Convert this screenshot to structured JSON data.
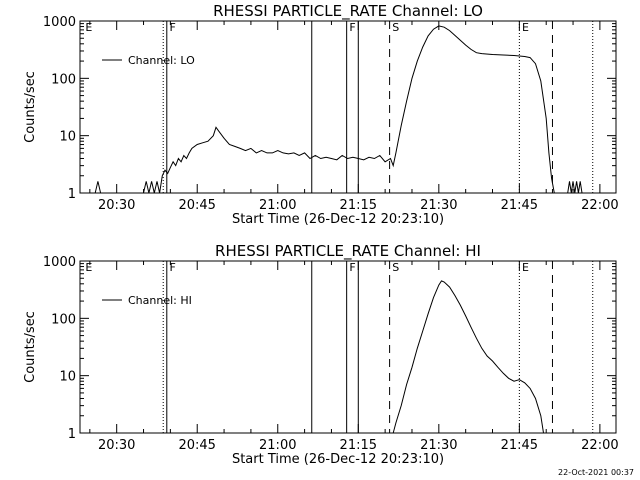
{
  "footer": "22-Oct-2021 00:37",
  "chart_data": [
    {
      "type": "line",
      "title": "RHESSI PARTICLE_RATE Channel: LO",
      "xlabel": "Start Time (26-Dec-12 20:23:10)",
      "ylabel": "Counts/sec",
      "y_scale": "log",
      "ylim": [
        1,
        1000
      ],
      "yticks": [
        {
          "value": 1,
          "label": "1"
        },
        {
          "value": 10,
          "label": "10"
        },
        {
          "value": 100,
          "label": "100"
        },
        {
          "value": 1000,
          "label": "1000"
        }
      ],
      "xlim": [
        "20:23:10",
        "22:03:00"
      ],
      "xticks": [
        "20:30",
        "20:45",
        "21:00",
        "21:15",
        "21:30",
        "21:45",
        "22:00"
      ],
      "legend": {
        "position": "top-left",
        "entries": [
          "Channel: LO"
        ]
      },
      "series": [
        {
          "name": "Channel: LO",
          "points": [
            [
              "20:26:00",
              1
            ],
            [
              "20:26:30",
              1.6
            ],
            [
              "20:27:00",
              1
            ],
            [
              "20:35:00",
              1
            ],
            [
              "20:35:30",
              1.6
            ],
            [
              "20:36:00",
              1
            ],
            [
              "20:36:30",
              1.6
            ],
            [
              "20:37:00",
              1
            ],
            [
              "20:37:30",
              1.6
            ],
            [
              "20:38:00",
              1
            ],
            [
              "20:38:30",
              2
            ],
            [
              "20:39:00",
              2.5
            ],
            [
              "20:39:30",
              2.2
            ],
            [
              "20:40:00",
              2.8
            ],
            [
              "20:40:30",
              3.5
            ],
            [
              "20:41:00",
              3
            ],
            [
              "20:41:30",
              4
            ],
            [
              "20:42:00",
              3.5
            ],
            [
              "20:42:30",
              4.5
            ],
            [
              "20:43:00",
              4
            ],
            [
              "20:43:30",
              5
            ],
            [
              "20:44:00",
              6
            ],
            [
              "20:45:00",
              7
            ],
            [
              "20:46:00",
              7.5
            ],
            [
              "20:47:00",
              8
            ],
            [
              "20:48:00",
              10
            ],
            [
              "20:48:30",
              14
            ],
            [
              "20:49:00",
              12
            ],
            [
              "20:50:00",
              9
            ],
            [
              "20:51:00",
              7
            ],
            [
              "20:52:00",
              6.5
            ],
            [
              "20:53:00",
              6
            ],
            [
              "20:54:00",
              5.5
            ],
            [
              "20:55:00",
              6
            ],
            [
              "20:56:00",
              5
            ],
            [
              "20:57:00",
              5.5
            ],
            [
              "20:58:00",
              5
            ],
            [
              "20:59:00",
              5
            ],
            [
              "21:00:00",
              5.5
            ],
            [
              "21:01:00",
              5
            ],
            [
              "21:02:00",
              4.8
            ],
            [
              "21:03:00",
              5
            ],
            [
              "21:04:00",
              4.5
            ],
            [
              "21:05:00",
              5
            ],
            [
              "21:06:00",
              4
            ],
            [
              "21:07:00",
              4.5
            ],
            [
              "21:08:00",
              4
            ],
            [
              "21:09:00",
              4.2
            ],
            [
              "21:10:00",
              4
            ],
            [
              "21:11:00",
              3.8
            ],
            [
              "21:12:00",
              4.5
            ],
            [
              "21:13:00",
              4
            ],
            [
              "21:14:00",
              4.2
            ],
            [
              "21:15:00",
              4
            ],
            [
              "21:16:00",
              3.8
            ],
            [
              "21:17:00",
              4.2
            ],
            [
              "21:18:00",
              4
            ],
            [
              "21:19:00",
              4.5
            ],
            [
              "21:20:00",
              3.5
            ],
            [
              "21:21:00",
              4
            ],
            [
              "21:21:30",
              3
            ],
            [
              "21:22:00",
              5
            ],
            [
              "21:23:00",
              15
            ],
            [
              "21:24:00",
              40
            ],
            [
              "21:25:00",
              100
            ],
            [
              "21:26:00",
              200
            ],
            [
              "21:27:00",
              350
            ],
            [
              "21:28:00",
              550
            ],
            [
              "21:29:00",
              720
            ],
            [
              "21:30:00",
              820
            ],
            [
              "21:31:00",
              780
            ],
            [
              "21:32:00",
              680
            ],
            [
              "21:33:00",
              560
            ],
            [
              "21:34:00",
              460
            ],
            [
              "21:35:00",
              380
            ],
            [
              "21:36:00",
              320
            ],
            [
              "21:37:00",
              280
            ],
            [
              "21:38:00",
              270
            ],
            [
              "21:40:00",
              260
            ],
            [
              "21:42:00",
              255
            ],
            [
              "21:44:00",
              250
            ],
            [
              "21:46:00",
              240
            ],
            [
              "21:47:00",
              230
            ],
            [
              "21:48:00",
              180
            ],
            [
              "21:49:00",
              90
            ],
            [
              "21:50:00",
              20
            ],
            [
              "21:50:30",
              5
            ],
            [
              "21:51:00",
              1.8
            ],
            [
              "21:51:30",
              1
            ],
            [
              "21:54:00",
              1
            ],
            [
              "21:54:20",
              1.6
            ],
            [
              "21:54:40",
              1
            ],
            [
              "21:55:00",
              1.6
            ],
            [
              "21:55:20",
              1
            ],
            [
              "21:55:40",
              1.6
            ],
            [
              "21:56:00",
              1
            ],
            [
              "21:56:20",
              1.6
            ],
            [
              "21:56:40",
              1
            ]
          ]
        }
      ],
      "vlines": [
        {
          "time": "20:38:40",
          "style": "dotted"
        },
        {
          "time": "20:39:20",
          "style": "solid"
        },
        {
          "time": "21:06:20",
          "style": "solid"
        },
        {
          "time": "21:12:50",
          "style": "solid"
        },
        {
          "time": "21:15:00",
          "style": "solid"
        },
        {
          "time": "21:20:50",
          "style": "dashed"
        },
        {
          "time": "21:45:00",
          "style": "dotted"
        },
        {
          "time": "21:51:10",
          "style": "dashed"
        },
        {
          "time": "21:58:40",
          "style": "dotted"
        }
      ],
      "flags": [
        {
          "time": "20:24:10",
          "label": "E"
        },
        {
          "time": "20:39:50",
          "label": "F"
        },
        {
          "time": "21:13:20",
          "label": "F"
        },
        {
          "time": "21:21:20",
          "label": "S"
        },
        {
          "time": "21:45:30",
          "label": "E"
        }
      ]
    },
    {
      "type": "line",
      "title": "RHESSI PARTICLE_RATE Channel: HI",
      "xlabel": "Start Time (26-Dec-12 20:23:10)",
      "ylabel": "Counts/sec",
      "y_scale": "log",
      "ylim": [
        1,
        1000
      ],
      "yticks": [
        {
          "value": 1,
          "label": "1"
        },
        {
          "value": 10,
          "label": "10"
        },
        {
          "value": 100,
          "label": "100"
        },
        {
          "value": 1000,
          "label": "1000"
        }
      ],
      "xlim": [
        "20:23:10",
        "22:03:00"
      ],
      "xticks": [
        "20:30",
        "20:45",
        "21:00",
        "21:15",
        "21:30",
        "21:45",
        "22:00"
      ],
      "legend": {
        "position": "top-left",
        "entries": [
          "Channel: HI"
        ]
      },
      "series": [
        {
          "name": "Channel: HI",
          "points": [
            [
              "21:21:30",
              1
            ],
            [
              "21:22:00",
              1.5
            ],
            [
              "21:23:00",
              3
            ],
            [
              "21:24:00",
              7
            ],
            [
              "21:25:00",
              14
            ],
            [
              "21:26:00",
              30
            ],
            [
              "21:27:00",
              60
            ],
            [
              "21:28:00",
              120
            ],
            [
              "21:29:00",
              230
            ],
            [
              "21:30:00",
              380
            ],
            [
              "21:30:30",
              450
            ],
            [
              "21:31:00",
              430
            ],
            [
              "21:32:00",
              350
            ],
            [
              "21:33:00",
              250
            ],
            [
              "21:34:00",
              170
            ],
            [
              "21:35:00",
              110
            ],
            [
              "21:36:00",
              70
            ],
            [
              "21:37:00",
              45
            ],
            [
              "21:38:00",
              30
            ],
            [
              "21:39:00",
              22
            ],
            [
              "21:40:00",
              18
            ],
            [
              "21:41:00",
              14
            ],
            [
              "21:42:00",
              11
            ],
            [
              "21:43:00",
              9
            ],
            [
              "21:44:00",
              8
            ],
            [
              "21:45:00",
              8.5
            ],
            [
              "21:46:00",
              7.5
            ],
            [
              "21:47:00",
              6
            ],
            [
              "21:48:00",
              4
            ],
            [
              "21:49:00",
              2
            ],
            [
              "21:49:30",
              1
            ]
          ]
        }
      ],
      "vlines": [
        {
          "time": "20:38:40",
          "style": "dotted"
        },
        {
          "time": "20:39:20",
          "style": "solid"
        },
        {
          "time": "21:06:20",
          "style": "solid"
        },
        {
          "time": "21:12:50",
          "style": "solid"
        },
        {
          "time": "21:15:00",
          "style": "solid"
        },
        {
          "time": "21:20:50",
          "style": "dashed"
        },
        {
          "time": "21:45:00",
          "style": "dotted"
        },
        {
          "time": "21:51:10",
          "style": "dashed"
        },
        {
          "time": "21:58:40",
          "style": "dotted"
        }
      ],
      "flags": [
        {
          "time": "20:24:10",
          "label": "E"
        },
        {
          "time": "20:39:50",
          "label": "F"
        },
        {
          "time": "21:13:20",
          "label": "F"
        },
        {
          "time": "21:21:20",
          "label": "S"
        },
        {
          "time": "21:45:30",
          "label": "E"
        }
      ]
    }
  ]
}
